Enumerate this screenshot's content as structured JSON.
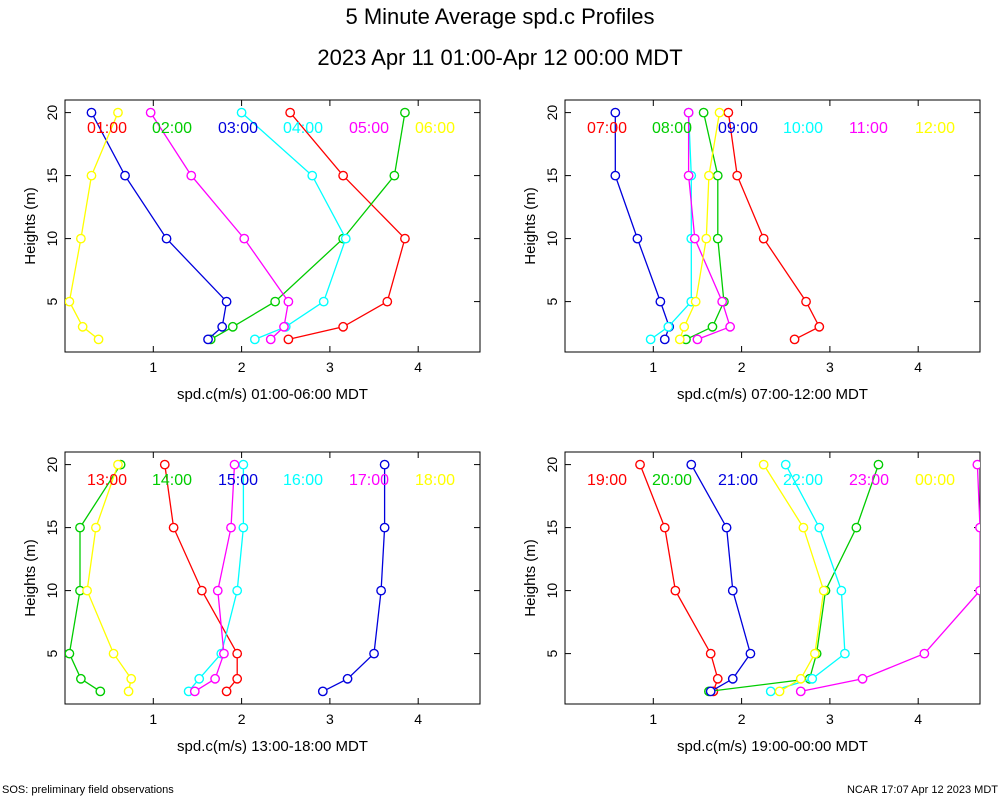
{
  "title": "5 Minute Average spd.c Profiles",
  "subtitle": "2023 Apr 11 01:00-Apr 12 00:00 MDT",
  "footer_left": "SOS: preliminary field observations",
  "footer_right": "NCAR 17:07 Apr 12 2023 MDT",
  "colors": {
    "red": "#ff0000",
    "green": "#00cc00",
    "blue": "#0000dd",
    "cyan": "#00ffff",
    "magenta": "#ff00ff",
    "yellow": "#ffff00"
  },
  "chart_data": [
    {
      "type": "line",
      "xlabel": "spd.c(m/s) 01:00-06:00 MDT",
      "ylabel": "Heights (m)",
      "xlim": [
        0,
        4.7
      ],
      "ylim": [
        1,
        21
      ],
      "xticks": [
        1,
        2,
        3,
        4
      ],
      "yticks": [
        5,
        10,
        15,
        20
      ],
      "heights": [
        2,
        3,
        5,
        10,
        15,
        20
      ],
      "series": [
        {
          "name": "01:00",
          "color": "red",
          "values": [
            2.53,
            3.15,
            3.65,
            3.85,
            3.15,
            2.55
          ]
        },
        {
          "name": "02:00",
          "color": "green",
          "values": [
            1.65,
            1.9,
            2.38,
            3.15,
            3.73,
            3.85
          ]
        },
        {
          "name": "03:00",
          "color": "blue",
          "values": [
            1.62,
            1.78,
            1.83,
            1.15,
            0.68,
            0.3
          ]
        },
        {
          "name": "04:00",
          "color": "cyan",
          "values": [
            2.15,
            2.5,
            2.93,
            3.18,
            2.8,
            2.0
          ]
        },
        {
          "name": "05:00",
          "color": "magenta",
          "values": [
            2.33,
            2.48,
            2.53,
            2.03,
            1.43,
            0.97
          ]
        },
        {
          "name": "06:00",
          "color": "yellow",
          "values": [
            0.38,
            0.2,
            0.05,
            0.18,
            0.3,
            0.6
          ]
        }
      ]
    },
    {
      "type": "line",
      "xlabel": "spd.c(m/s) 07:00-12:00 MDT",
      "ylabel": "Heights (m)",
      "xlim": [
        0,
        4.7
      ],
      "ylim": [
        1,
        21
      ],
      "xticks": [
        1,
        2,
        3,
        4
      ],
      "yticks": [
        5,
        10,
        15,
        20
      ],
      "heights": [
        2,
        3,
        5,
        10,
        15,
        20
      ],
      "series": [
        {
          "name": "07:00",
          "color": "red",
          "values": [
            2.6,
            2.88,
            2.73,
            2.25,
            1.95,
            1.85
          ]
        },
        {
          "name": "08:00",
          "color": "green",
          "values": [
            1.37,
            1.67,
            1.8,
            1.73,
            1.73,
            1.57
          ]
        },
        {
          "name": "09:00",
          "color": "blue",
          "values": [
            1.13,
            1.18,
            1.08,
            0.82,
            0.57,
            0.57
          ]
        },
        {
          "name": "10:00",
          "color": "cyan",
          "values": [
            0.97,
            1.17,
            1.43,
            1.43,
            1.43,
            1.4
          ]
        },
        {
          "name": "11:00",
          "color": "magenta",
          "values": [
            1.5,
            1.87,
            1.78,
            1.47,
            1.4,
            1.4
          ]
        },
        {
          "name": "12:00",
          "color": "yellow",
          "values": [
            1.3,
            1.35,
            1.48,
            1.6,
            1.63,
            1.75
          ]
        }
      ]
    },
    {
      "type": "line",
      "xlabel": "spd.c(m/s) 13:00-18:00 MDT",
      "ylabel": "Heights (m)",
      "xlim": [
        0,
        4.7
      ],
      "ylim": [
        1,
        21
      ],
      "xticks": [
        1,
        2,
        3,
        4
      ],
      "yticks": [
        5,
        10,
        15,
        20
      ],
      "heights": [
        2,
        3,
        5,
        10,
        15,
        20
      ],
      "series": [
        {
          "name": "13:00",
          "color": "red",
          "values": [
            1.83,
            1.95,
            1.95,
            1.55,
            1.23,
            1.13
          ]
        },
        {
          "name": "14:00",
          "color": "green",
          "values": [
            0.4,
            0.18,
            0.05,
            0.17,
            0.17,
            0.63
          ]
        },
        {
          "name": "15:00",
          "color": "blue",
          "values": [
            2.92,
            3.2,
            3.5,
            3.58,
            3.62,
            3.62
          ]
        },
        {
          "name": "16:00",
          "color": "cyan",
          "values": [
            1.4,
            1.52,
            1.77,
            1.95,
            2.02,
            2.02
          ]
        },
        {
          "name": "17:00",
          "color": "magenta",
          "values": [
            1.47,
            1.7,
            1.8,
            1.73,
            1.88,
            1.92
          ]
        },
        {
          "name": "18:00",
          "color": "yellow",
          "values": [
            0.72,
            0.75,
            0.55,
            0.25,
            0.35,
            0.6
          ]
        }
      ]
    },
    {
      "type": "line",
      "xlabel": "spd.c(m/s) 19:00-00:00 MDT",
      "ylabel": "Heights (m)",
      "xlim": [
        0,
        4.7
      ],
      "ylim": [
        1,
        21
      ],
      "xticks": [
        1,
        2,
        3,
        4
      ],
      "yticks": [
        5,
        10,
        15,
        20
      ],
      "heights": [
        2,
        3,
        5,
        10,
        15,
        20
      ],
      "series": [
        {
          "name": "19:00",
          "color": "red",
          "values": [
            1.68,
            1.73,
            1.65,
            1.25,
            1.13,
            0.85
          ]
        },
        {
          "name": "20:00",
          "color": "green",
          "values": [
            1.63,
            2.77,
            2.85,
            2.95,
            3.3,
            3.55
          ]
        },
        {
          "name": "21:00",
          "color": "blue",
          "values": [
            1.65,
            1.9,
            2.1,
            1.9,
            1.83,
            1.43
          ]
        },
        {
          "name": "22:00",
          "color": "cyan",
          "values": [
            2.33,
            2.8,
            3.17,
            3.13,
            2.88,
            2.5
          ]
        },
        {
          "name": "23:00",
          "color": "magenta",
          "values": [
            2.67,
            3.37,
            4.07,
            4.7,
            4.7,
            4.67
          ]
        },
        {
          "name": "00:00",
          "color": "yellow",
          "values": [
            2.43,
            2.67,
            2.83,
            2.93,
            2.7,
            2.25
          ]
        }
      ]
    }
  ]
}
